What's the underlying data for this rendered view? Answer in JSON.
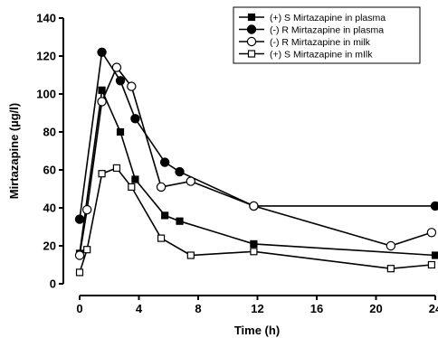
{
  "chart_data": {
    "type": "line",
    "xlabel": "Time (h)",
    "ylabel": "Mirtazapine (µg/l)",
    "xlim": [
      0,
      24
    ],
    "ylim": [
      0,
      140
    ],
    "xticks": [
      0,
      4,
      8,
      12,
      16,
      20,
      24
    ],
    "yticks": [
      0,
      20,
      40,
      60,
      80,
      100,
      120,
      140
    ],
    "grid": false,
    "legend_position": "top-right",
    "series": [
      {
        "name": "(+) S Mirtazapine in plasma",
        "marker": "filled-square",
        "color": "#000000",
        "x": [
          0,
          1.5,
          2.75,
          3.75,
          5.75,
          6.75,
          11.75,
          24
        ],
        "y": [
          16,
          102,
          80,
          55,
          36,
          33,
          21,
          15
        ]
      },
      {
        "name": "(-) R Mirtazapine in plasma",
        "marker": "filled-circle",
        "color": "#000000",
        "x": [
          0,
          1.5,
          2.75,
          3.75,
          5.75,
          6.75,
          11.75,
          24
        ],
        "y": [
          34,
          122,
          107,
          87,
          64,
          59,
          41,
          41
        ]
      },
      {
        "name": "(-) R Mirtazapine in milk",
        "marker": "open-circle",
        "color": "#000000",
        "x": [
          0,
          0.5,
          1.5,
          2.5,
          3.5,
          5.5,
          7.5,
          11.75,
          21,
          23.75
        ],
        "y": [
          15,
          39,
          96,
          114,
          104,
          51,
          54,
          41,
          20,
          27
        ]
      },
      {
        "name": "(+) S Mirtazapine in mIlk",
        "marker": "open-square",
        "color": "#000000",
        "x": [
          0,
          0.5,
          1.5,
          2.5,
          3.5,
          5.5,
          7.5,
          11.75,
          21,
          23.75
        ],
        "y": [
          6,
          18,
          58,
          61,
          51,
          24,
          15,
          17,
          8,
          10
        ]
      }
    ]
  }
}
